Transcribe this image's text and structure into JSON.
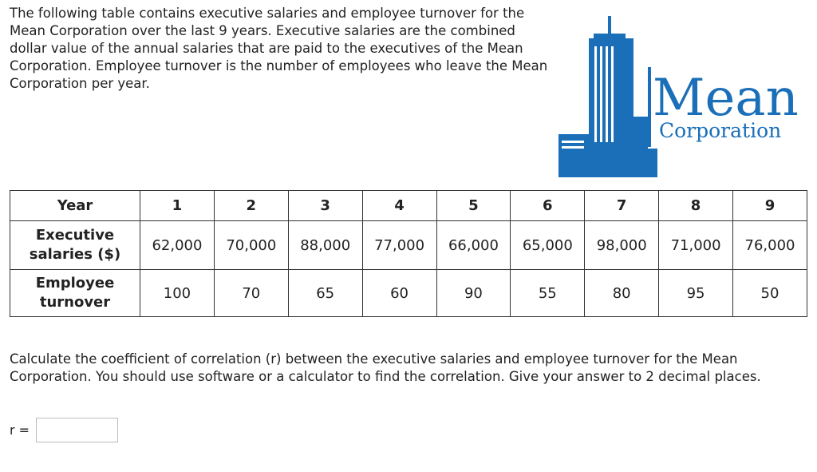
{
  "intro": {
    "text": "The following table contains executive salaries and employee turnover for the Mean Corporation over the last 9 years. Executive salaries are the combined dollar value of the annual salaries that are paid to the executives of the Mean Corporation. Employee turnover is the number of employees who leave the Mean Corporation per year."
  },
  "logo": {
    "word": "Mean",
    "sub": "Corporation",
    "color": "#1a6fb8"
  },
  "table": {
    "year_header": "Year",
    "years": [
      "1",
      "2",
      "3",
      "4",
      "5",
      "6",
      "7",
      "8",
      "9"
    ],
    "salaries_label": "Executive salaries ($)",
    "salaries": [
      "62,000",
      "70,000",
      "88,000",
      "77,000",
      "66,000",
      "65,000",
      "98,000",
      "71,000",
      "76,000"
    ],
    "turnover_label": "Employee turnover",
    "turnover": [
      "100",
      "70",
      "65",
      "60",
      "90",
      "55",
      "80",
      "95",
      "50"
    ]
  },
  "question": {
    "text": "Calculate the coefficient of correlation (r) between the executive salaries and employee turnover for the Mean Corporation. You should use software or a calculator to find the correlation. Give your answer to 2 decimal places."
  },
  "answer": {
    "label": "r =",
    "value": ""
  }
}
